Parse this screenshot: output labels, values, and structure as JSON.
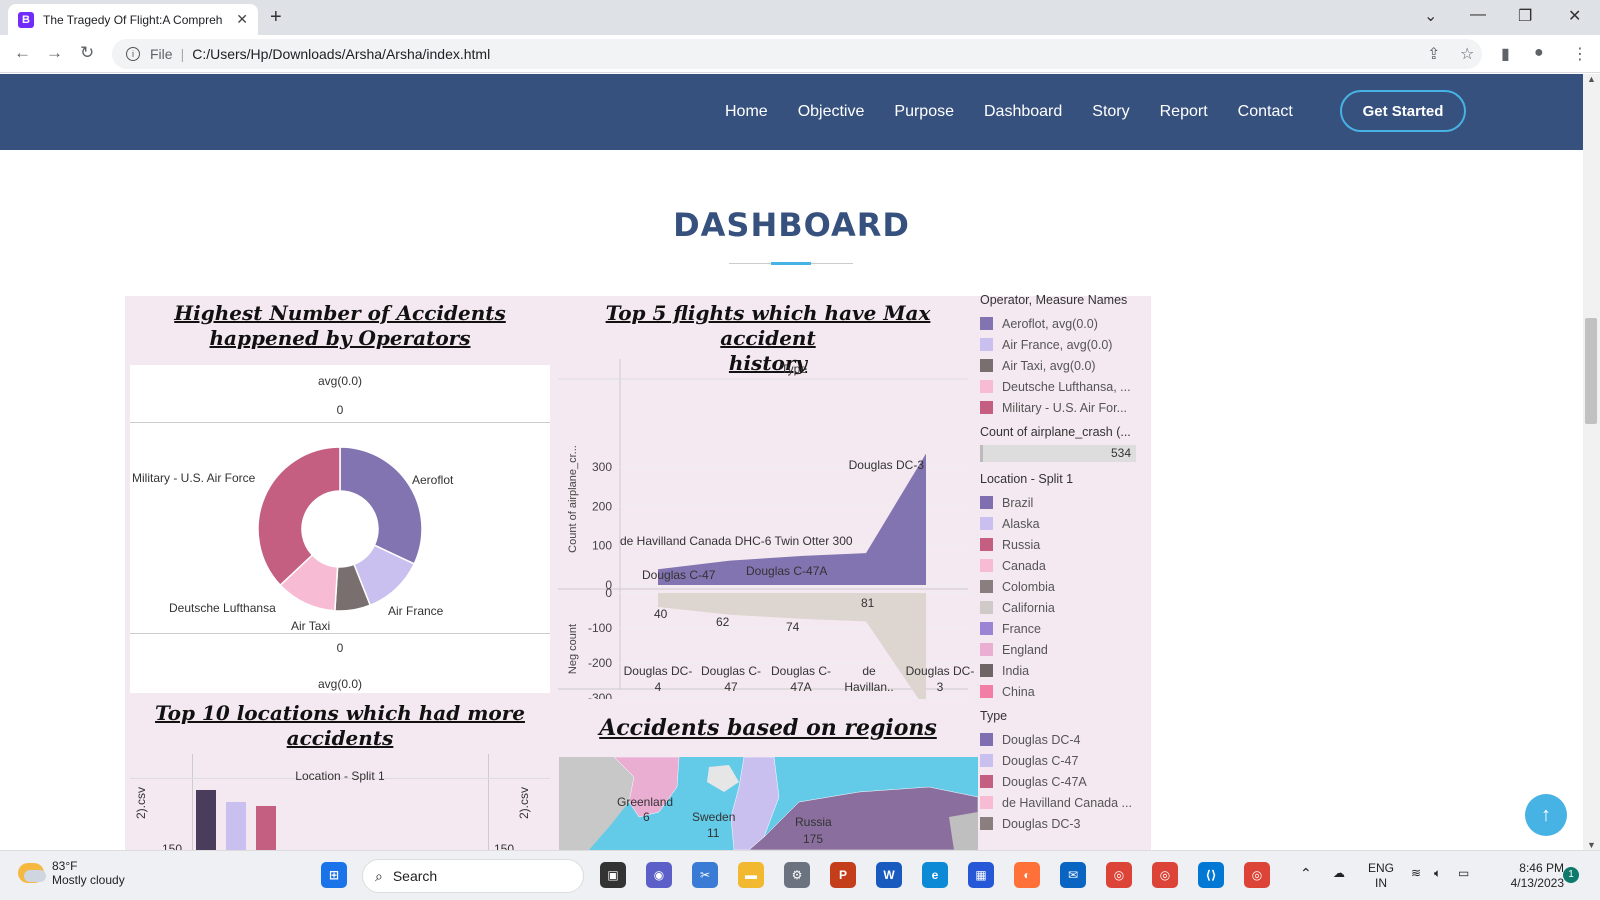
{
  "browser": {
    "tab_title": "The Tragedy Of Flight:A Compreh",
    "tab_favicon": "B",
    "address_scheme": "File",
    "address_url": "C:/Users/Hp/Downloads/Arsha/Arsha/index.html"
  },
  "nav": {
    "items": [
      "Home",
      "Objective",
      "Purpose",
      "Dashboard",
      "Story",
      "Report",
      "Contact"
    ],
    "cta": "Get Started"
  },
  "section_title": "DASHBOARD",
  "dashboard": {
    "pie": {
      "title_line1": "Highest Number of Accidents",
      "title_line2": "happened by Operators",
      "top_measure": "avg(0.0)",
      "top_zero": "0",
      "bottom_zero": "0",
      "bottom_measure": "avg(0.0)",
      "labels": [
        "Military - U.S. Air Force",
        "Aeroflot",
        "Deutsche Lufthansa",
        "Air Taxi",
        "Air France"
      ]
    },
    "flights": {
      "title_line1": "Top 5 flights which have Max accident",
      "title_line2": "history",
      "header": "Type",
      "y_top_label": "Count of airplane_cr...",
      "y_bottom_label": "Neg count",
      "upper_ticks": [
        "300",
        "200",
        "100",
        "0"
      ],
      "lower_ticks": [
        "0",
        "-100",
        "-200",
        "-300"
      ],
      "mark_labels": [
        "Douglas DC-3",
        "de Havilland Canada DHC-6 Twin Otter 300",
        "Douglas C-47",
        "Douglas C-47A"
      ],
      "value_labels": [
        "40",
        "62",
        "74",
        "81",
        "334"
      ],
      "x_labels": [
        "Douglas DC-\n4",
        "Douglas C-\n47",
        "Douglas C-\n47A",
        "de\nHavillan..",
        "Douglas DC-\n3"
      ]
    },
    "locations": {
      "title_line1": "Top 10 locations which had more",
      "title_line2": "accidents",
      "header": "Location - Split 1",
      "y_label_left": "2).csv",
      "y_label_right": "2).csv",
      "tick_left": "150",
      "tick_right": "150"
    },
    "regions": {
      "title": "Accidents based on regions",
      "labels": [
        {
          "name": "Greenland",
          "value": "6"
        },
        {
          "name": "Sweden",
          "value": "11"
        },
        {
          "name": "Russia",
          "value": "175"
        }
      ]
    },
    "legend": {
      "operator_title": "Operator, Measure Names",
      "operators": [
        {
          "label": "Aeroflot, avg(0.0)",
          "color": "#8174b0"
        },
        {
          "label": "Air France, avg(0.0)",
          "color": "#c9c0ef"
        },
        {
          "label": "Air Taxi, avg(0.0)",
          "color": "#7a6f6f"
        },
        {
          "label": "Deutsche Lufthansa, ...",
          "color": "#f7bcd4"
        },
        {
          "label": "Military - U.S. Air For...",
          "color": "#c45f82"
        }
      ],
      "count_title": "Count of airplane_crash (...",
      "count_value": "534",
      "location_title": "Location - Split 1",
      "locations": [
        {
          "label": "Brazil",
          "color": "#7f6eb0"
        },
        {
          "label": "Alaska",
          "color": "#c9c0ef"
        },
        {
          "label": "Russia",
          "color": "#c45f82"
        },
        {
          "label": "Canada",
          "color": "#f7bcd4"
        },
        {
          "label": "Colombia",
          "color": "#8a7e7e"
        },
        {
          "label": "California",
          "color": "#cfc9c8"
        },
        {
          "label": "France",
          "color": "#9a84d4"
        },
        {
          "label": "England",
          "color": "#e9aed2"
        },
        {
          "label": "India",
          "color": "#6e6565"
        },
        {
          "label": "China",
          "color": "#f27ea6"
        }
      ],
      "type_title": "Type",
      "types": [
        {
          "label": "Douglas DC-4",
          "color": "#7f6eb0"
        },
        {
          "label": "Douglas C-47",
          "color": "#c9c0ef"
        },
        {
          "label": "Douglas C-47A",
          "color": "#c45f82"
        },
        {
          "label": "de Havilland Canada ...",
          "color": "#f7bcd4"
        },
        {
          "label": "Douglas DC-3",
          "color": "#8a7e7e"
        }
      ]
    }
  },
  "chart_data": [
    {
      "type": "pie",
      "title": "Highest Number of Accidents happened by Operators",
      "categories": [
        "Aeroflot",
        "Air France",
        "Air Taxi",
        "Deutsche Lufthansa",
        "Military - U.S. Air Force"
      ],
      "values": [
        32,
        12,
        7,
        12,
        37
      ],
      "colors": [
        "#8174b0",
        "#c9c0ef",
        "#7a6f6f",
        "#f7bcd4",
        "#c45f82"
      ]
    },
    {
      "type": "area",
      "title": "Top 5 flights which have Max accident history",
      "xlabel": "Type",
      "ylabel": "Count of airplane_cr...",
      "categories": [
        "Douglas DC-4",
        "Douglas C-47",
        "Douglas C-47A",
        "de Havilland Canada DHC-6 Twin Otter 300",
        "Douglas DC-3"
      ],
      "series": [
        {
          "name": "Count of airplane_cr...",
          "values": [
            40,
            62,
            74,
            81,
            334
          ]
        },
        {
          "name": "Neg count",
          "values": [
            -40,
            -62,
            -74,
            -81,
            -334
          ]
        }
      ],
      "ylim_upper": [
        0,
        330
      ],
      "ylim_lower": [
        -330,
        0
      ]
    }
  ],
  "taskbar": {
    "temp": "83°F",
    "condition": "Mostly cloudy",
    "search_placeholder": "Search",
    "lang1": "ENG",
    "lang2": "IN",
    "time": "8:46 PM",
    "date": "4/13/2023",
    "notif_count": "1"
  }
}
